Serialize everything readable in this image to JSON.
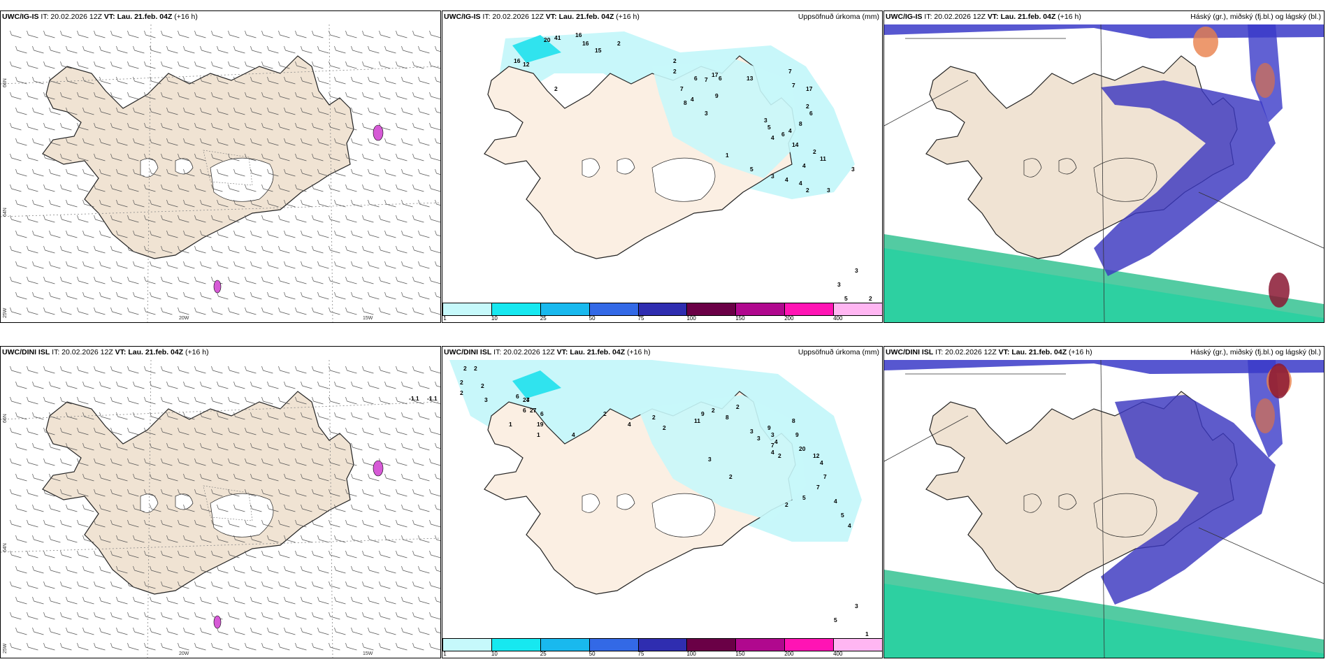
{
  "top": {
    "wind": {
      "model": "UWC/IG-IS",
      "it": "IT: 20.02.2026 12Z",
      "vt_label": "VT:",
      "vt": "Lau. 21.feb. 04Z",
      "lead": "(+16 h)",
      "right": ""
    },
    "precip": {
      "model": "UWC/IG-IS",
      "it": "IT: 20.02.2026 12Z",
      "vt_label": "VT:",
      "vt": "Lau. 21.feb. 04Z",
      "lead": "(+16 h)",
      "right": "Uppsöfnuð úrkoma (mm)"
    },
    "cloud": {
      "model": "UWC/IG-IS",
      "it": "IT: 20.02.2026 12Z",
      "vt_label": "VT:",
      "vt": "Lau. 21.feb. 04Z",
      "lead": "(+16 h)",
      "right": "Háský (gr.), miðský (fj.bl.) og lágský (bl.)"
    }
  },
  "bottom": {
    "wind": {
      "model": "UWC/DINI ISL",
      "it": "IT: 20.02.2026 12Z",
      "vt_label": "VT:",
      "vt": "Lau. 21.feb. 04Z",
      "lead": "(+16 h)",
      "right": ""
    },
    "precip": {
      "model": "UWC/DINI ISL",
      "it": "IT: 20.02.2026 12Z",
      "vt_label": "VT:",
      "vt": "Lau. 21.feb. 04Z",
      "lead": "(+16 h)",
      "right": "Uppsöfnuð úrkoma (mm)"
    },
    "cloud": {
      "model": "UWC/DINI ISL",
      "it": "IT: 20.02.2026 12Z",
      "vt_label": "VT:",
      "vt": "Lau. 21.feb. 04Z",
      "lead": "(+16 h)",
      "right": "Háský (gr.), miðský (fj.bl.) og lágský (bl.)"
    }
  },
  "coords": {
    "lat66": "66N",
    "lat64": "64N",
    "lon25": "25W",
    "lon20": "20W",
    "lon15": "15W"
  },
  "temp_labels": {
    "a": "-1.1",
    "b": "-1.1"
  },
  "colorbar": {
    "labels": [
      "1",
      "10",
      "25",
      "50",
      "75",
      "100",
      "150",
      "200",
      "400"
    ],
    "colors": [
      "#c6f9fb",
      "#17e8f0",
      "#19b9ee",
      "#3369e6",
      "#2f2db0",
      "#6a0046",
      "#b0088e",
      "#ff14b4",
      "#ffb6f2"
    ]
  },
  "precip_top_numbers": [
    "20",
    "41",
    "16",
    "16",
    "15",
    "2",
    "16",
    "12",
    "2",
    "2",
    "2",
    "7",
    "8",
    "6",
    "7",
    "17",
    "6",
    "9",
    "4",
    "3",
    "13",
    "7",
    "7",
    "17",
    "2",
    "6",
    "8",
    "4",
    "3",
    "5",
    "4",
    "6",
    "14",
    "2",
    "11",
    "4",
    "1",
    "5",
    "3",
    "4",
    "4",
    "2",
    "3",
    "3",
    "3",
    "3",
    "5",
    "2"
  ],
  "precip_bottom_numbers": [
    "2",
    "2",
    "2",
    "2",
    "3",
    "2",
    "6",
    "24",
    "7",
    "6",
    "27",
    "6",
    "19",
    "1",
    "1",
    "4",
    "2",
    "4",
    "2",
    "2",
    "11",
    "9",
    "2",
    "8",
    "2",
    "3",
    "3",
    "3",
    "7",
    "4",
    "3",
    "2",
    "9",
    "4",
    "2",
    "8",
    "9",
    "20",
    "12",
    "4",
    "7",
    "7",
    "5",
    "2",
    "4",
    "5",
    "4",
    "3",
    "5",
    "1"
  ]
}
